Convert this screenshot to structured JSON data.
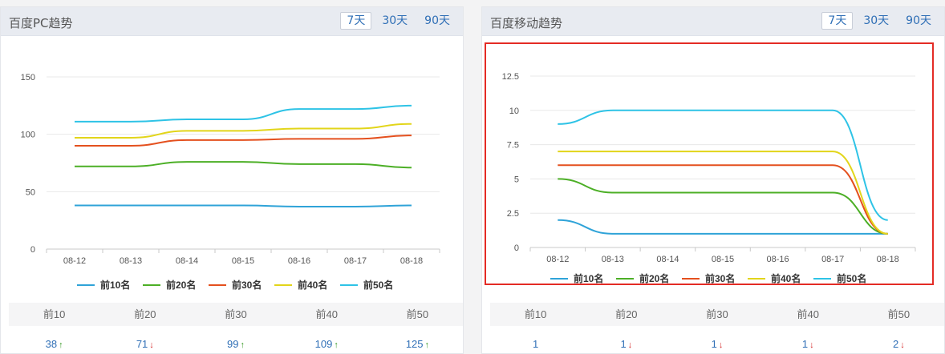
{
  "panels": {
    "pc": {
      "title": "百度PC趋势",
      "tabs": [
        "7天",
        "30天",
        "90天"
      ],
      "active_tab": "7天",
      "stats": {
        "headers": [
          "前10",
          "前20",
          "前30",
          "前40",
          "前50"
        ],
        "values": [
          {
            "value": "38",
            "trend": "up"
          },
          {
            "value": "71",
            "trend": "down"
          },
          {
            "value": "99",
            "trend": "up"
          },
          {
            "value": "109",
            "trend": "up"
          },
          {
            "value": "125",
            "trend": "up"
          }
        ]
      }
    },
    "mobile": {
      "title": "百度移动趋势",
      "tabs": [
        "7天",
        "30天",
        "90天"
      ],
      "active_tab": "7天",
      "stats": {
        "headers": [
          "前10",
          "前20",
          "前30",
          "前40",
          "前50"
        ],
        "values": [
          {
            "value": "1",
            "trend": "none"
          },
          {
            "value": "1",
            "trend": "down"
          },
          {
            "value": "1",
            "trend": "down"
          },
          {
            "value": "1",
            "trend": "down"
          },
          {
            "value": "2",
            "trend": "down"
          }
        ]
      }
    }
  },
  "colors": {
    "top10": "#2fa3d8",
    "top20": "#4caf26",
    "top30": "#e4501e",
    "top40": "#e2d51a",
    "top50": "#2ec3e6",
    "link": "#2f6fb6",
    "highlight": "#e42b25"
  },
  "chart_data": [
    {
      "id": "pc",
      "type": "line",
      "categories": [
        "08-12",
        "08-13",
        "08-14",
        "08-15",
        "08-16",
        "08-17",
        "08-18"
      ],
      "yticks": [
        0,
        50,
        100,
        150
      ],
      "ytick_labels": [
        "0",
        "50",
        "100",
        "150"
      ],
      "ylim": [
        0,
        150
      ],
      "grid": true,
      "legend_position": "bottom",
      "series": [
        {
          "name": "前10名",
          "values": [
            38,
            38,
            38,
            38,
            37,
            37,
            38
          ]
        },
        {
          "name": "前20名",
          "values": [
            72,
            72,
            76,
            76,
            74,
            74,
            71
          ]
        },
        {
          "name": "前30名",
          "values": [
            90,
            90,
            95,
            95,
            96,
            96,
            99
          ]
        },
        {
          "name": "前40名",
          "values": [
            97,
            97,
            103,
            103,
            105,
            105,
            109
          ]
        },
        {
          "name": "前50名",
          "values": [
            111,
            111,
            113,
            113,
            122,
            122,
            125
          ]
        }
      ]
    },
    {
      "id": "mobile",
      "type": "line",
      "categories": [
        "08-12",
        "08-13",
        "08-14",
        "08-15",
        "08-16",
        "08-17",
        "08-18"
      ],
      "yticks": [
        0,
        2.5,
        5,
        7.5,
        10,
        12.5
      ],
      "ytick_labels": [
        "0",
        "2.5",
        "5",
        "7.5",
        "10",
        "12.5"
      ],
      "ylim": [
        0,
        12.5
      ],
      "grid": true,
      "legend_position": "bottom",
      "series": [
        {
          "name": "前10名",
          "values": [
            2,
            1,
            1,
            1,
            1,
            1,
            1
          ]
        },
        {
          "name": "前20名",
          "values": [
            5,
            4,
            4,
            4,
            4,
            4,
            1
          ]
        },
        {
          "name": "前30名",
          "values": [
            6,
            6,
            6,
            6,
            6,
            6,
            1
          ]
        },
        {
          "name": "前40名",
          "values": [
            7,
            7,
            7,
            7,
            7,
            7,
            1
          ]
        },
        {
          "name": "前50名",
          "values": [
            9,
            10,
            10,
            10,
            10,
            10,
            2
          ]
        }
      ]
    }
  ]
}
